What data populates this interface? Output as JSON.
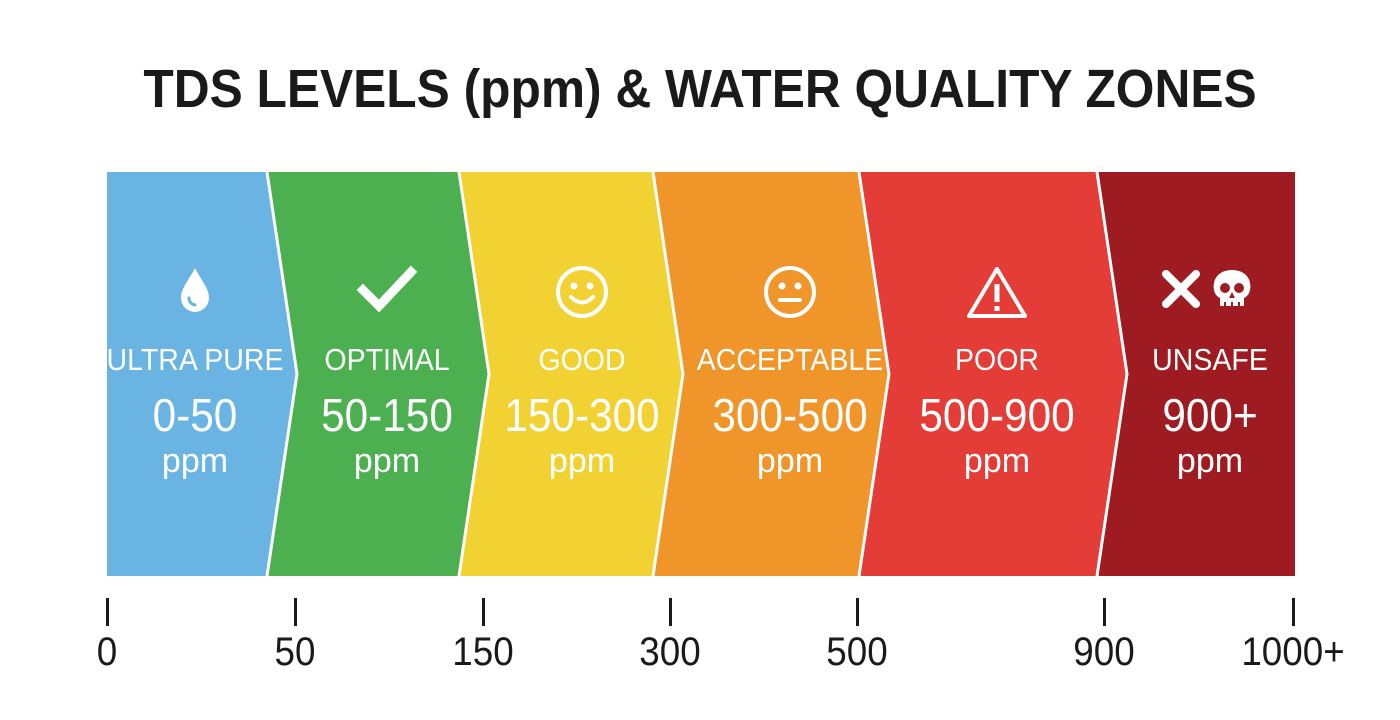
{
  "title": "TDS LEVELS (ppm) & WATER QUALITY ZONES",
  "zones": [
    {
      "label": "ULTRA PURE",
      "range": "0-50",
      "unit": "ppm",
      "icon": "water-drop-icon",
      "color": "#6ab4e3"
    },
    {
      "label": "OPTIMAL",
      "range": "50-150",
      "unit": "ppm",
      "icon": "checkmark-icon",
      "color": "#4caf50"
    },
    {
      "label": "GOOD",
      "range": "150-300",
      "unit": "ppm",
      "icon": "smiley-face-icon",
      "color": "#f2d233"
    },
    {
      "label": "ACCEPTABLE",
      "range": "300-500",
      "unit": "ppm",
      "icon": "neutral-face-icon",
      "color": "#f0952a"
    },
    {
      "label": "POOR",
      "range": "500-900",
      "unit": "ppm",
      "icon": "warning-triangle-icon",
      "color": "#e43c36"
    },
    {
      "label": "UNSAFE",
      "range": "900+",
      "unit": "ppm",
      "icon": "cross-skull-icon",
      "color": "#9e1b22"
    }
  ],
  "axis_ticks": [
    "0",
    "50",
    "150",
    "300",
    "500",
    "900",
    "1000+"
  ]
}
